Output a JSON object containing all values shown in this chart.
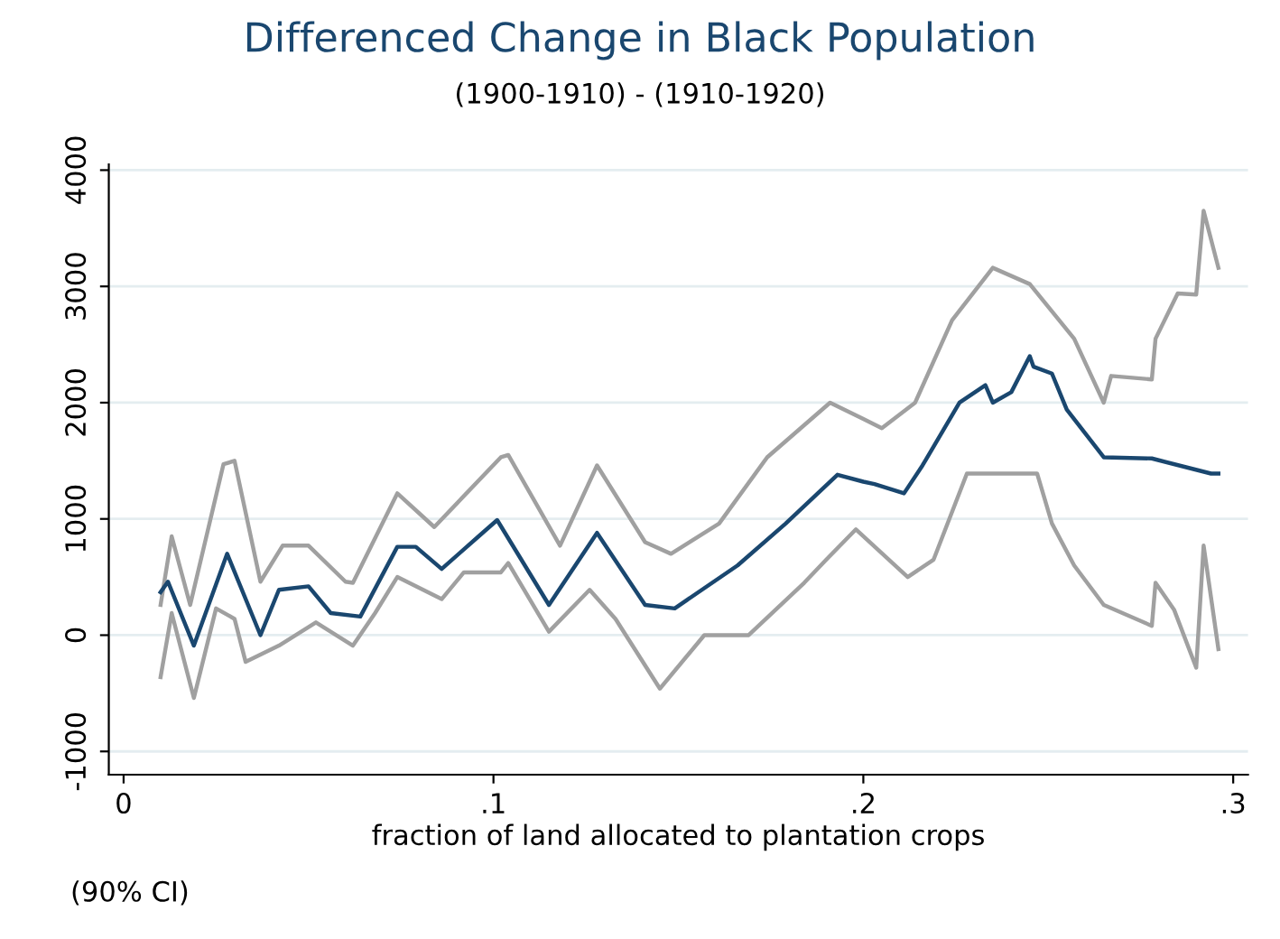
{
  "chart_data": {
    "type": "line",
    "title": "Differenced Change in Black Population",
    "subtitle": "(1900-1910) - (1910-1920)",
    "xlabel": "fraction of land allocated to plantation crops",
    "annotations": [
      "(90% CI)"
    ],
    "xlim": [
      -0.004,
      0.304
    ],
    "ylim": [
      -1200,
      4050
    ],
    "xticks": [
      {
        "value": 0,
        "label": "0"
      },
      {
        "value": 0.1,
        "label": ".1"
      },
      {
        "value": 0.2,
        "label": ".2"
      },
      {
        "value": 0.3,
        "label": ".3"
      }
    ],
    "yticks": [
      {
        "value": -1000,
        "label": "-1000"
      },
      0,
      1000,
      2000,
      3000,
      4000
    ],
    "grid": "y",
    "legend": false,
    "line_style": "solid",
    "series": [
      {
        "color": "#a0a0a0",
        "x": [
          0.01,
          0.013,
          0.018,
          0.027,
          0.03,
          0.037,
          0.043,
          0.05,
          0.06,
          0.062,
          0.074,
          0.084,
          0.102,
          0.104,
          0.118,
          0.128,
          0.141,
          0.148,
          0.161,
          0.174,
          0.191,
          0.2,
          0.205,
          0.214,
          0.224,
          0.235,
          0.245,
          0.257,
          0.265,
          0.267,
          0.278,
          0.279,
          0.285,
          0.29,
          0.292,
          0.296
        ],
        "values": [
          260,
          850,
          260,
          1470,
          1500,
          460,
          770,
          770,
          460,
          450,
          1220,
          930,
          1530,
          1550,
          770,
          1460,
          800,
          700,
          960,
          1530,
          2000,
          1860,
          1780,
          2000,
          2710,
          3160,
          3020,
          2550,
          2000,
          2230,
          2200,
          2550,
          2940,
          2930,
          3650,
          3160
        ]
      },
      {
        "color": "#a0a0a0",
        "x": [
          0.01,
          0.013,
          0.019,
          0.025,
          0.03,
          0.033,
          0.042,
          0.052,
          0.062,
          0.068,
          0.074,
          0.086,
          0.092,
          0.102,
          0.104,
          0.115,
          0.126,
          0.133,
          0.145,
          0.157,
          0.169,
          0.184,
          0.19,
          0.198,
          0.212,
          0.219,
          0.228,
          0.237,
          0.247,
          0.251,
          0.257,
          0.265,
          0.278,
          0.279,
          0.284,
          0.29,
          0.292,
          0.296
        ],
        "values": [
          -360,
          190,
          -540,
          230,
          140,
          -230,
          -90,
          110,
          -90,
          190,
          500,
          310,
          540,
          540,
          620,
          30,
          390,
          140,
          -460,
          0,
          0,
          450,
          650,
          910,
          500,
          650,
          1390,
          1390,
          1390,
          960,
          600,
          260,
          80,
          450,
          220,
          -280,
          770,
          -120
        ]
      },
      {
        "color": "#1a476f",
        "x": [
          0.01,
          0.012,
          0.019,
          0.028,
          0.037,
          0.042,
          0.05,
          0.056,
          0.064,
          0.074,
          0.079,
          0.086,
          0.096,
          0.101,
          0.115,
          0.128,
          0.141,
          0.149,
          0.166,
          0.179,
          0.193,
          0.2,
          0.203,
          0.211,
          0.216,
          0.226,
          0.233,
          0.235,
          0.24,
          0.245,
          0.246,
          0.251,
          0.255,
          0.265,
          0.278,
          0.294,
          0.296
        ],
        "values": [
          370,
          460,
          -90,
          700,
          0,
          390,
          420,
          190,
          160,
          760,
          760,
          570,
          850,
          990,
          260,
          880,
          260,
          230,
          600,
          960,
          1380,
          1320,
          1300,
          1220,
          1460,
          2000,
          2150,
          2000,
          2090,
          2400,
          2310,
          2250,
          1940,
          1530,
          1520,
          1390,
          1390
        ]
      }
    ]
  }
}
